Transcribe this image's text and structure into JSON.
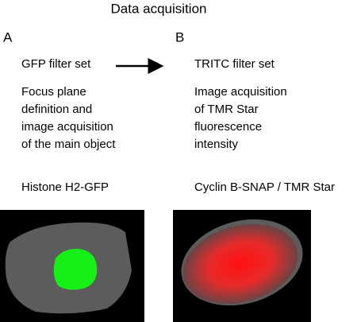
{
  "title": "Data acquisition",
  "panels": [
    {
      "letter": "A",
      "filter": "GFP filter set",
      "description": [
        "Focus plane",
        "definition and",
        "image acquisition",
        "of the main object"
      ],
      "label": "Histone H2-GFP"
    },
    {
      "letter": "B",
      "filter": "TRITC filter set",
      "description": [
        "Image acquisition",
        "of TMR Star",
        "fluorescence",
        "intensity"
      ],
      "label": "Cyclin B-SNAP / TMR Star"
    }
  ]
}
